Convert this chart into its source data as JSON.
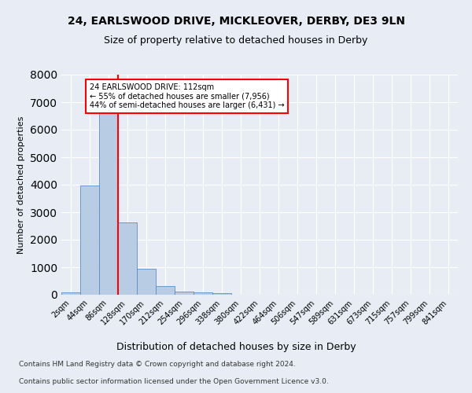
{
  "title_line1": "24, EARLSWOOD DRIVE, MICKLEOVER, DERBY, DE3 9LN",
  "title_line2": "Size of property relative to detached houses in Derby",
  "xlabel": "Distribution of detached houses by size in Derby",
  "ylabel": "Number of detached properties",
  "bar_color": "#b8cce4",
  "bar_edge_color": "#5b8cc8",
  "annotation_text": "24 EARLSWOOD DRIVE: 112sqm\n← 55% of detached houses are smaller (7,956)\n44% of semi-detached houses are larger (6,431) →",
  "annotation_box_color": "white",
  "annotation_box_edge_color": "red",
  "vline_x": 3,
  "vline_color": "red",
  "footer_line1": "Contains HM Land Registry data © Crown copyright and database right 2024.",
  "footer_line2": "Contains public sector information licensed under the Open Government Licence v3.0.",
  "bin_labels": [
    "2sqm",
    "44sqm",
    "86sqm",
    "128sqm",
    "170sqm",
    "212sqm",
    "254sqm",
    "296sqm",
    "338sqm",
    "380sqm",
    "422sqm",
    "464sqm",
    "506sqm",
    "547sqm",
    "589sqm",
    "631sqm",
    "673sqm",
    "715sqm",
    "757sqm",
    "799sqm",
    "841sqm"
  ],
  "bar_values": [
    80,
    3980,
    6600,
    2620,
    950,
    310,
    125,
    95,
    70,
    0,
    0,
    0,
    0,
    0,
    0,
    0,
    0,
    0,
    0,
    0,
    0
  ],
  "ylim": [
    0,
    8000
  ],
  "background_color": "#e8edf5",
  "plot_bg_color": "#e8edf5",
  "grid_color": "white",
  "title1_fontsize": 10,
  "title2_fontsize": 9,
  "xlabel_fontsize": 9,
  "ylabel_fontsize": 8,
  "tick_fontsize": 7,
  "footer_fontsize": 6.5
}
